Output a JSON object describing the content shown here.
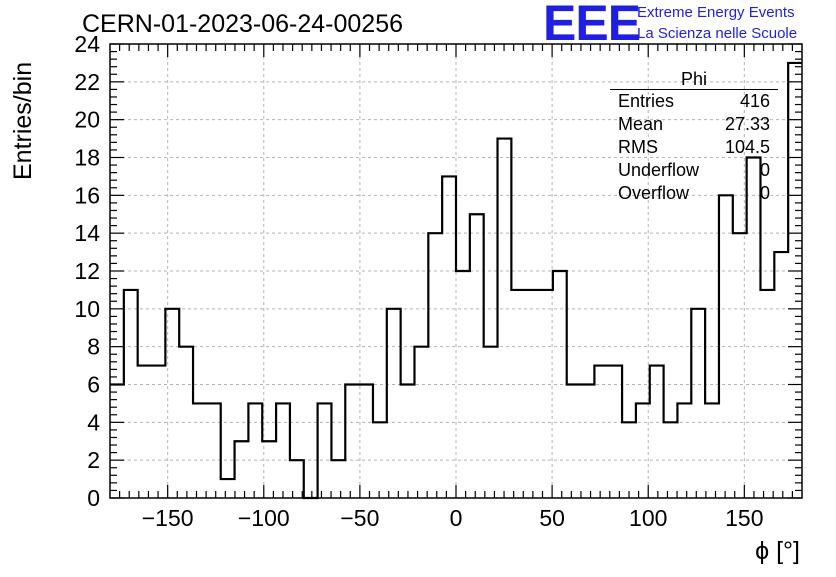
{
  "title": "CERN-01-2023-06-24-00256",
  "logo": {
    "text": "EEE",
    "line1": "Extreme Energy Events",
    "line2": "La Scienza nelle Scuole"
  },
  "stats": {
    "name": "Phi",
    "rows": [
      {
        "label": "Entries",
        "value": "416"
      },
      {
        "label": "Mean",
        "value": "27.33"
      },
      {
        "label": "RMS",
        "value": "104.5"
      },
      {
        "label": "Underflow",
        "value": "0"
      },
      {
        "label": "Overflow",
        "value": "0"
      }
    ]
  },
  "chart_data": {
    "type": "bar",
    "title": "CERN-01-2023-06-24-00256",
    "xlabel": "ϕ [°]",
    "ylabel": "Entries/bin",
    "xlim": [
      -180,
      180
    ],
    "ylim": [
      0,
      24
    ],
    "bin_width": 7.2,
    "x_ticks": [
      -150,
      -100,
      -50,
      0,
      50,
      100,
      150
    ],
    "x_tick_labels": [
      "−150",
      "−100",
      "−50",
      "0",
      "50",
      "100",
      "150"
    ],
    "y_ticks": [
      0,
      2,
      4,
      6,
      8,
      10,
      12,
      14,
      16,
      18,
      20,
      22,
      24
    ],
    "grid": true,
    "series": [
      {
        "values": [
          6,
          11,
          7,
          7,
          10,
          8,
          5,
          5,
          1,
          3,
          5,
          3,
          5,
          2,
          0,
          5,
          2,
          6,
          6,
          4,
          10,
          6,
          8,
          14,
          17,
          12,
          15,
          8,
          19,
          11,
          11,
          11,
          12,
          6,
          6,
          7,
          7,
          4,
          5,
          7,
          4,
          5,
          10,
          5,
          16,
          14,
          18,
          11,
          13,
          23
        ]
      }
    ]
  }
}
